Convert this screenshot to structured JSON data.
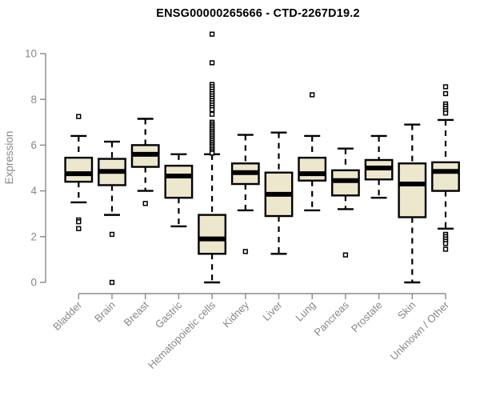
{
  "colors": {
    "background": "#ffffff",
    "title_text": "#000000",
    "axis_line": "#8a8a8a",
    "axis_text": "#878787",
    "box_fill": "#ece7cd",
    "box_stroke": "#000000",
    "median_stroke": "#000000",
    "whisker_stroke": "#000000",
    "outlier_fill": "#ffffff",
    "outlier_stroke": "#000000"
  },
  "chart_data": {
    "type": "boxplot",
    "title": "ENSG00000265666 - CTD-2267D19.2",
    "ylabel": "Expression",
    "xlabel": "",
    "ylim": [
      0,
      10.9
    ],
    "yticks": [
      0,
      2,
      4,
      6,
      8,
      10
    ],
    "grid": false,
    "legend": false,
    "categories": [
      "Bladder",
      "Brain",
      "Breast",
      "Gastric",
      "Hematopoietic cells",
      "Kidney",
      "Liver",
      "Lung",
      "Pancreas",
      "Prostate",
      "Skin",
      "Unknown / Other"
    ],
    "boxes": [
      {
        "label": "Bladder",
        "low": 3.5,
        "q1": 4.4,
        "median": 4.75,
        "q3": 5.45,
        "high": 6.4,
        "outliers": [
          7.25,
          2.73,
          2.65,
          2.35
        ]
      },
      {
        "label": "Brain",
        "low": 2.95,
        "q1": 4.25,
        "median": 4.85,
        "q3": 5.4,
        "high": 6.15,
        "outliers": [
          2.1,
          0
        ]
      },
      {
        "label": "Breast",
        "low": 4.0,
        "q1": 5.05,
        "median": 5.6,
        "q3": 6.0,
        "high": 7.15,
        "outliers": [
          3.45
        ]
      },
      {
        "label": "Gastric",
        "low": 2.45,
        "q1": 3.7,
        "median": 4.65,
        "q3": 5.1,
        "high": 5.6,
        "outliers": []
      },
      {
        "label": "Hematopoietic cells",
        "low": 0,
        "q1": 1.25,
        "median": 1.9,
        "q3": 2.95,
        "high": 5.6,
        "outliers": [
          10.85,
          9.6,
          8.65,
          8.55,
          8.45,
          8.35,
          8.25,
          8.15,
          8.05,
          7.95,
          7.85,
          7.75,
          7.65,
          7.55,
          7.35,
          7.0,
          6.92,
          6.84,
          6.76,
          6.68,
          6.6,
          6.52,
          6.44,
          6.36,
          6.28,
          6.2,
          6.12,
          6.04,
          5.96,
          5.88,
          5.8,
          5.72,
          5.65
        ]
      },
      {
        "label": "Kidney",
        "low": 3.15,
        "q1": 4.3,
        "median": 4.8,
        "q3": 5.2,
        "high": 6.45,
        "outliers": [
          1.35
        ]
      },
      {
        "label": "Liver",
        "low": 1.25,
        "q1": 2.9,
        "median": 3.85,
        "q3": 4.8,
        "high": 6.55,
        "outliers": []
      },
      {
        "label": "Lung",
        "low": 3.15,
        "q1": 4.45,
        "median": 4.75,
        "q3": 5.45,
        "high": 6.4,
        "outliers": [
          8.2
        ]
      },
      {
        "label": "Pancreas",
        "low": 3.2,
        "q1": 3.8,
        "median": 4.45,
        "q3": 4.9,
        "high": 5.85,
        "outliers": [
          1.2
        ]
      },
      {
        "label": "Prostate",
        "low": 3.7,
        "q1": 4.5,
        "median": 5.0,
        "q3": 5.35,
        "high": 6.4,
        "outliers": []
      },
      {
        "label": "Skin",
        "low": 0,
        "q1": 2.85,
        "median": 4.3,
        "q3": 5.2,
        "high": 6.9,
        "outliers": []
      },
      {
        "label": "Unknown / Other",
        "low": 2.35,
        "q1": 4.0,
        "median": 4.85,
        "q3": 5.25,
        "high": 7.1,
        "outliers": [
          8.55,
          8.25,
          7.8,
          7.7,
          7.6,
          7.5,
          7.4,
          2.1,
          2.0,
          1.9,
          1.8,
          1.7,
          1.45
        ]
      }
    ]
  }
}
